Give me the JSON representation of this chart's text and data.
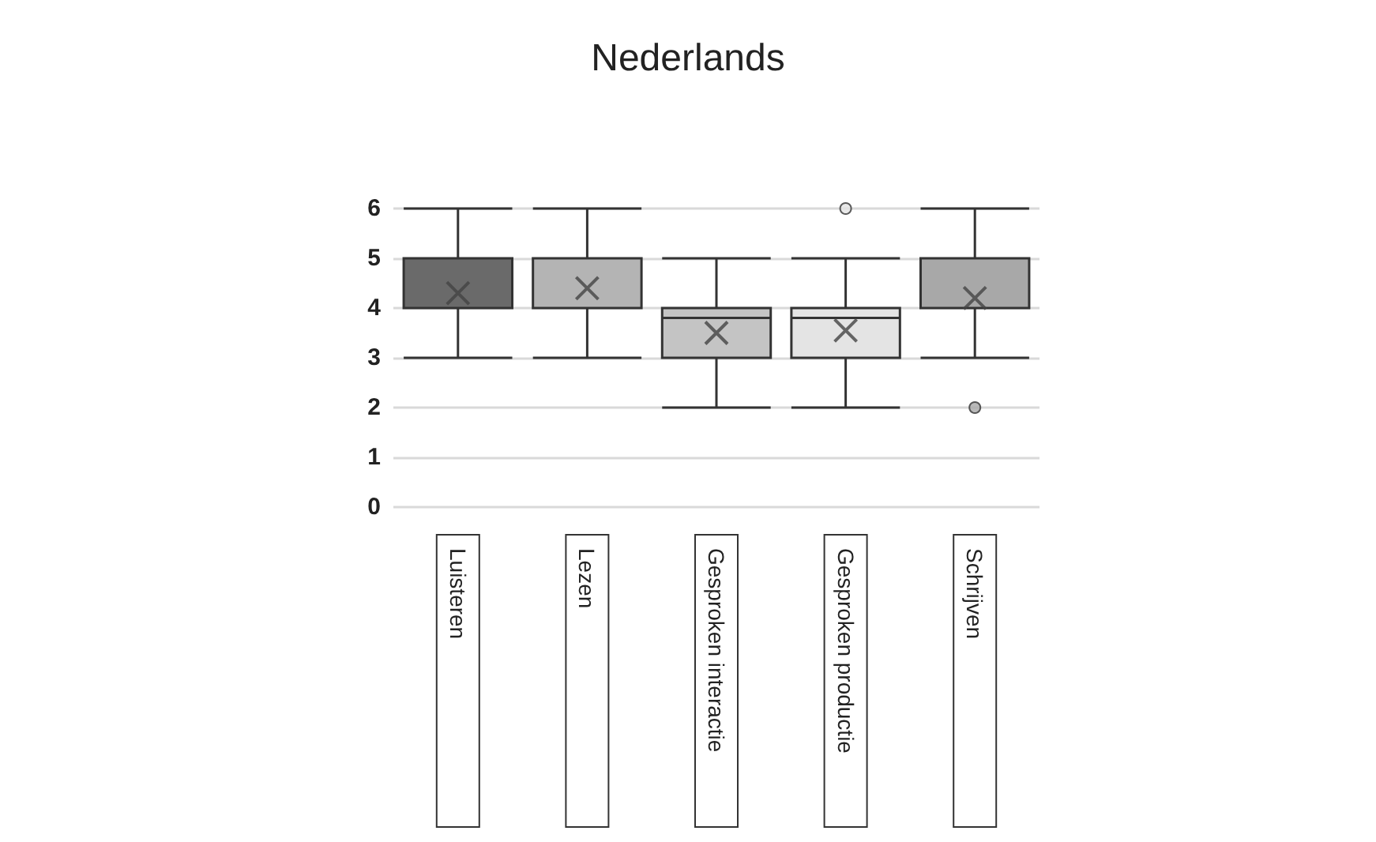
{
  "chart_data": {
    "type": "box",
    "title": "Nederlands",
    "categories": [
      "Luisteren",
      "Lezen",
      "Gesproken interactie",
      "Gesproken productie",
      "Schrijven"
    ],
    "colors": [
      "#6a6a6a",
      "#b4b4b4",
      "#c4c4c4",
      "#e4e4e4",
      "#a8a8a8"
    ],
    "boxes": [
      {
        "low": 3,
        "q1": 4,
        "median": 4,
        "q3": 5,
        "high": 6,
        "mean": 4.3
      },
      {
        "low": 3,
        "q1": 4,
        "median": 4,
        "q3": 5,
        "high": 6,
        "mean": 4.4
      },
      {
        "low": 2,
        "q1": 3,
        "median": 3.8,
        "q3": 4,
        "high": 5,
        "mean": 3.5
      },
      {
        "low": 2,
        "q1": 3,
        "median": 3.8,
        "q3": 4,
        "high": 5,
        "mean": 3.55,
        "outliers": [
          6
        ]
      },
      {
        "low": 3,
        "q1": 4,
        "median": 4,
        "q3": 5,
        "high": 6,
        "mean": 4.2,
        "outliers": [
          2
        ]
      }
    ],
    "ylim": [
      0,
      6
    ],
    "yticks": [
      0,
      1,
      2,
      3,
      4,
      5,
      6
    ],
    "grid": "y"
  }
}
